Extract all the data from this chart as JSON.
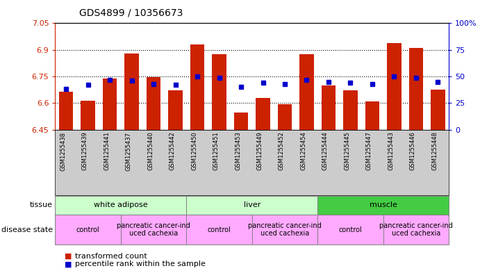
{
  "title": "GDS4899 / 10356673",
  "samples": [
    "GSM1255438",
    "GSM1255439",
    "GSM1255441",
    "GSM1255437",
    "GSM1255440",
    "GSM1255442",
    "GSM1255450",
    "GSM1255451",
    "GSM1255453",
    "GSM1255449",
    "GSM1255452",
    "GSM1255454",
    "GSM1255444",
    "GSM1255445",
    "GSM1255447",
    "GSM1255443",
    "GSM1255446",
    "GSM1255448"
  ],
  "transformed_count": [
    6.665,
    6.615,
    6.74,
    6.88,
    6.745,
    6.67,
    6.93,
    6.875,
    6.545,
    6.63,
    6.595,
    6.875,
    6.7,
    6.67,
    6.61,
    6.94,
    6.91,
    6.675
  ],
  "percentile_rank": [
    38,
    42,
    47,
    46,
    43,
    42,
    50,
    49,
    40,
    44,
    43,
    47,
    45,
    44,
    43,
    50,
    49,
    45
  ],
  "ymin": 6.45,
  "ymax": 7.05,
  "yticks": [
    6.45,
    6.6,
    6.75,
    6.9,
    7.05
  ],
  "ytick_labels": [
    "6.45",
    "6.6",
    "6.75",
    "6.9",
    "7.05"
  ],
  "right_yticks": [
    0,
    25,
    50,
    75,
    100
  ],
  "right_ytick_labels": [
    "0",
    "25",
    "50",
    "75",
    "100%"
  ],
  "bar_color": "#cc2200",
  "dot_color": "#0000cc",
  "tissue_groups_raw": [
    [
      0,
      5,
      "white adipose",
      "#ccffcc"
    ],
    [
      6,
      11,
      "liver",
      "#ccffcc"
    ],
    [
      12,
      17,
      "muscle",
      "#44cc44"
    ]
  ],
  "disease_groups_raw": [
    [
      0,
      2,
      "control",
      "#ffaaff"
    ],
    [
      3,
      5,
      "pancreatic cancer-ind\nuced cachexia",
      "#ffaaff"
    ],
    [
      6,
      8,
      "control",
      "#ffaaff"
    ],
    [
      9,
      11,
      "pancreatic cancer-ind\nuced cachexia",
      "#ffaaff"
    ],
    [
      12,
      14,
      "control",
      "#ffaaff"
    ],
    [
      15,
      17,
      "pancreatic cancer-ind\nuced cachexia",
      "#ffaaff"
    ]
  ]
}
